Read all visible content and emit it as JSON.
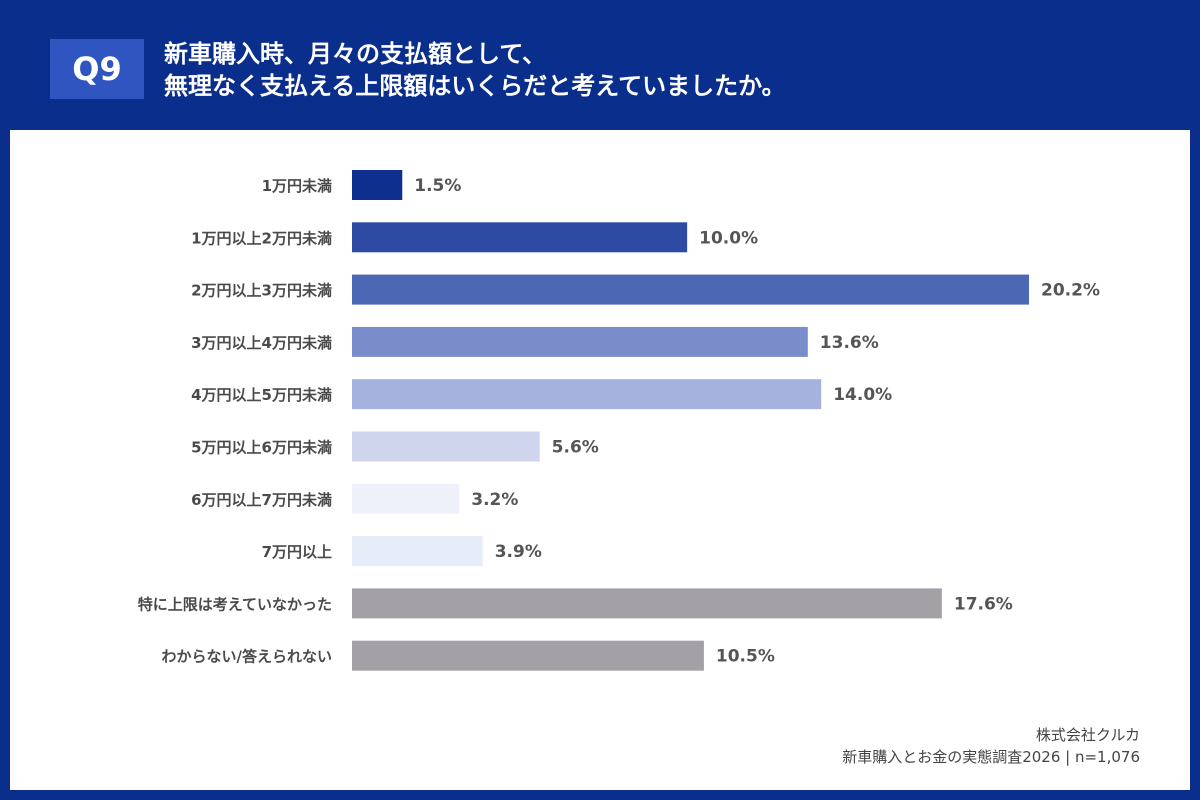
{
  "header": {
    "badge": "Q9",
    "title_line1": "新車購入時、月々の支払額として、",
    "title_line2": "無理なく支払える上限額はいくらだと考えていましたか。"
  },
  "chart_data": {
    "type": "bar",
    "orientation": "horizontal",
    "unit": "%",
    "categories": [
      "1万円未満",
      "1万円以上2万円未満",
      "2万円以上3万円未満",
      "3万円以上4万円未満",
      "4万円以上5万円未満",
      "5万円以上6万円未満",
      "6万円以上7万円未満",
      "7万円以上",
      "特に上限は考えていなかった",
      "わからない/答えられない"
    ],
    "values": [
      1.5,
      10.0,
      20.2,
      13.6,
      14.0,
      5.6,
      3.2,
      3.9,
      17.6,
      10.5
    ],
    "value_labels": [
      "1.5%",
      "10.0%",
      "20.2%",
      "13.6%",
      "14.0%",
      "5.6%",
      "3.2%",
      "3.9%",
      "17.6%",
      "10.5%"
    ],
    "colors": [
      "#0f2f8f",
      "#2e4ba3",
      "#4c68b5",
      "#7a8cc9",
      "#a6b2de",
      "#cfd5ec",
      "#eef1fa",
      "#e6ecf8",
      "#a3a1a6",
      "#a3a1a6"
    ],
    "xlim": [
      0,
      20.2
    ],
    "grid": false,
    "legend": "none"
  },
  "footer": {
    "company": "株式会社クルカ",
    "source": "新車購入とお金の実態調査2026 | n=1,076"
  }
}
